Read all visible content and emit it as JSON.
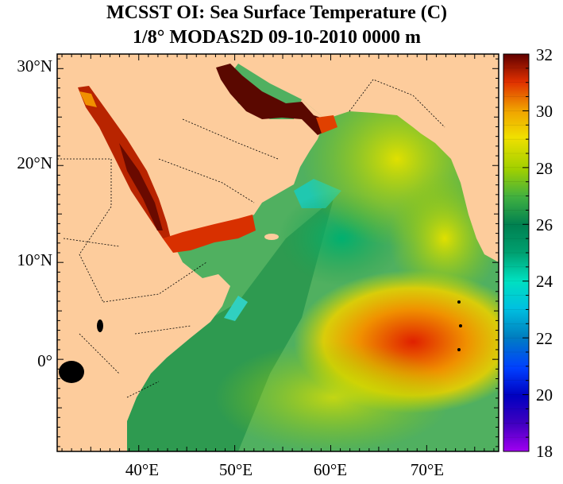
{
  "title": {
    "line1": "MCSST OI:  Sea Surface Temperature (C)",
    "line2": "1/8° MODAS2D 09-10-2010 0000 m"
  },
  "map": {
    "lon_range": [
      31.5,
      77.5
    ],
    "lat_range": [
      -9.5,
      31.5
    ],
    "land_color": "#fdcc9c",
    "x_tick_labels": [
      "40°E",
      "50°E",
      "60°E",
      "70°E"
    ],
    "y_tick_labels": [
      "30°N",
      "20°N",
      "10°N",
      "0°"
    ],
    "features": [
      "Red Sea",
      "Persian Gulf",
      "Gulf of Aden",
      "Arabian Sea",
      "Indian Ocean"
    ]
  },
  "colorbar": {
    "min": 18,
    "max": 32,
    "tick_labels": [
      "32",
      "30",
      "28",
      "26",
      "24",
      "22",
      "20",
      "18"
    ],
    "colors": [
      "#a000f0",
      "#0000a0",
      "#0000ff",
      "#0080c0",
      "#00e0e0",
      "#00c080",
      "#008060",
      "#40b040",
      "#a0d000",
      "#f0e000",
      "#f0a000",
      "#f05000",
      "#c01000",
      "#600000"
    ]
  }
}
